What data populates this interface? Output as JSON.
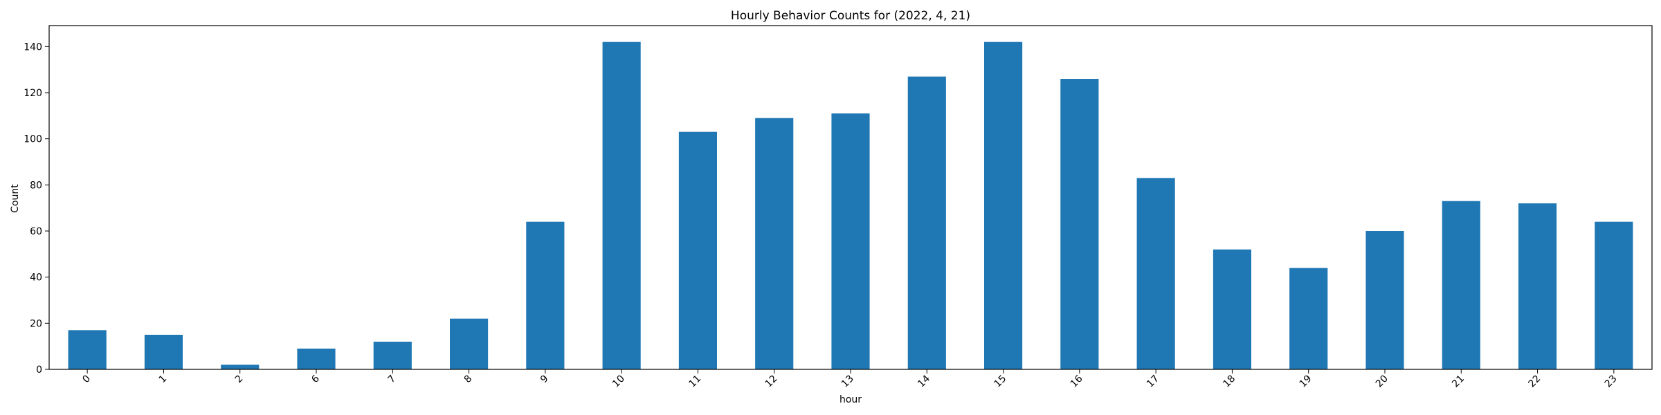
{
  "chart_data": {
    "type": "bar",
    "title": "Hourly Behavior Counts for (2022, 4, 21)",
    "xlabel": "hour",
    "ylabel": "Count",
    "categories": [
      "0",
      "1",
      "2",
      "6",
      "7",
      "8",
      "9",
      "10",
      "11",
      "12",
      "13",
      "14",
      "15",
      "16",
      "17",
      "18",
      "19",
      "20",
      "21",
      "22",
      "23"
    ],
    "values": [
      17,
      15,
      2,
      9,
      12,
      22,
      64,
      142,
      103,
      109,
      111,
      127,
      142,
      126,
      83,
      52,
      44,
      60,
      73,
      72,
      64
    ],
    "ylim": [
      0,
      149.1
    ],
    "yticks": [
      0,
      20,
      40,
      60,
      80,
      100,
      120,
      140
    ],
    "grid": false,
    "legend": "none",
    "bar_color": "#1f77b4"
  }
}
